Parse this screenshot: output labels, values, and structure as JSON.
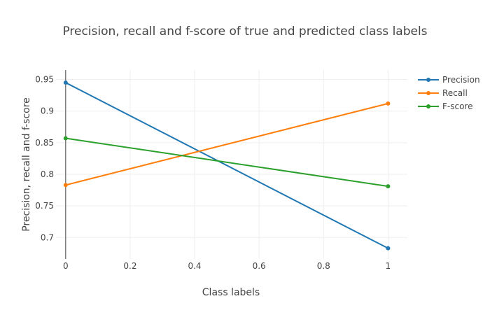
{
  "chart_data": {
    "type": "line",
    "title": "Precision, recall and f-score of true and predicted class labels",
    "xlabel": "Class labels",
    "ylabel": "Precision, recall and f-score",
    "x": [
      0,
      1
    ],
    "xlim": [
      -0.03,
      1.06
    ],
    "ylim": [
      0.666,
      0.965
    ],
    "x_ticks": [
      0,
      0.2,
      0.4,
      0.6,
      0.8,
      1
    ],
    "x_tick_labels": [
      "0",
      "0.2",
      "0.4",
      "0.6",
      "0.8",
      "1"
    ],
    "y_ticks": [
      0.7,
      0.75,
      0.8,
      0.85,
      0.9,
      0.95
    ],
    "y_tick_labels": [
      "0.7",
      "0.75",
      "0.8",
      "0.85",
      "0.9",
      "0.95"
    ],
    "grid": true,
    "legend_position": "top-right",
    "series": [
      {
        "name": "Precision",
        "color": "#1f77b4",
        "values": [
          0.945,
          0.683
        ]
      },
      {
        "name": "Recall",
        "color": "#ff7f0e",
        "values": [
          0.783,
          0.912
        ]
      },
      {
        "name": "F-score",
        "color": "#2ca02c",
        "values": [
          0.857,
          0.781
        ]
      }
    ]
  }
}
